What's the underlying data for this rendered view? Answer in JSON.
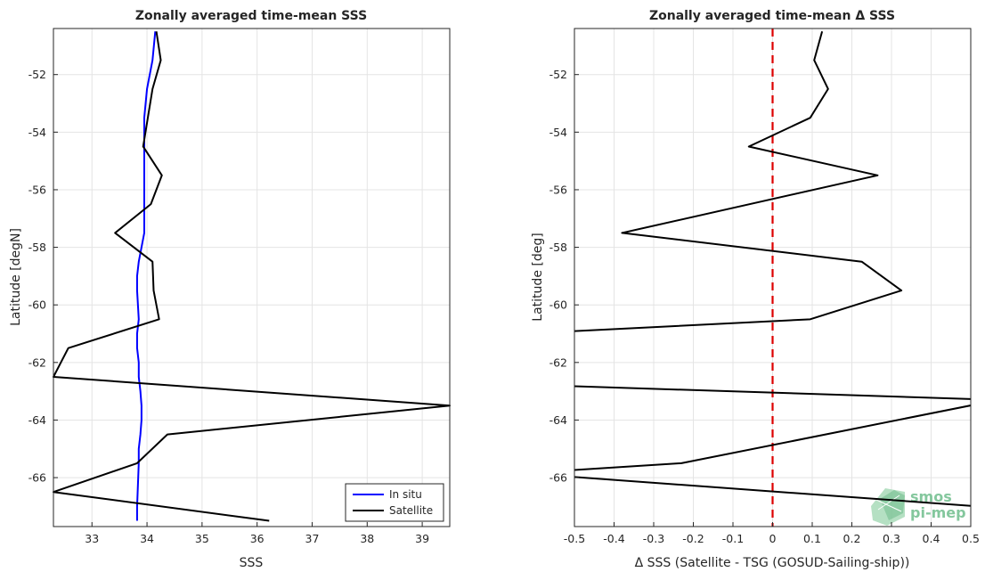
{
  "chart_data": [
    {
      "type": "line",
      "title": "Zonally averaged time-mean SSS",
      "xlabel": "SSS",
      "ylabel": "Latitude [degN]",
      "xlim": [
        32.3,
        39.5
      ],
      "ylim": [
        -67.7,
        -50.4
      ],
      "xticks": [
        33,
        34,
        35,
        36,
        37,
        38,
        39
      ],
      "yticks": [
        -66,
        -64,
        -62,
        -60,
        -58,
        -56,
        -54,
        -52
      ],
      "grid": true,
      "legend": {
        "placement": "bottom-right",
        "entries": [
          "In situ",
          "Satellite"
        ]
      },
      "series": [
        {
          "name": "In situ",
          "color": "#0000ff",
          "x": [
            34.15,
            34.1,
            34.0,
            33.95,
            33.95,
            33.95,
            33.95,
            33.95,
            33.95,
            33.85,
            33.82,
            33.82,
            33.85,
            33.82,
            33.82,
            33.85,
            33.85,
            33.88,
            33.9,
            33.9,
            33.88,
            33.85,
            33.85,
            33.83,
            33.82,
            33.82
          ],
          "y": [
            -50.5,
            -51.5,
            -52.5,
            -53.5,
            -54.5,
            -55.5,
            -56.0,
            -56.5,
            -57.5,
            -58.5,
            -59.0,
            -59.5,
            -60.5,
            -61.0,
            -61.5,
            -62.0,
            -62.5,
            -63.0,
            -63.5,
            -64.0,
            -64.5,
            -65.0,
            -65.5,
            -66.5,
            -67.0,
            -67.5
          ]
        },
        {
          "name": "Satellite",
          "color": "#000000",
          "x": [
            34.17,
            34.25,
            34.1,
            33.93,
            34.27,
            34.07,
            33.42,
            34.1,
            34.12,
            34.22,
            32.57,
            32.3,
            39.5,
            34.37,
            33.82,
            32.3,
            36.22
          ],
          "y": [
            -50.5,
            -51.5,
            -52.5,
            -54.5,
            -55.5,
            -56.5,
            -57.5,
            -58.5,
            -59.5,
            -60.5,
            -61.5,
            -62.5,
            -63.5,
            -64.5,
            -65.5,
            -66.5,
            -67.5
          ]
        }
      ]
    },
    {
      "type": "line",
      "title": "Zonally averaged time-mean Δ SSS",
      "xlabel": "Δ SSS (Satellite - TSG (GOSUD-Sailing-ship))",
      "ylabel": "Latitude [deg]",
      "xlim": [
        -0.5,
        0.5
      ],
      "ylim": [
        -67.7,
        -50.4
      ],
      "xticks": [
        -0.5,
        -0.4,
        -0.3,
        -0.2,
        -0.1,
        0,
        0.1,
        0.2,
        0.3,
        0.4,
        0.5
      ],
      "xticklabels": [
        "-0.5",
        "-0.4",
        "-0.3",
        "-0.2",
        "-0.1",
        "0",
        "0.1",
        "0.2",
        "0.3",
        "0.4",
        "0.5"
      ],
      "yticks": [
        -66,
        -64,
        -62,
        -60,
        -58,
        -56,
        -54,
        -52
      ],
      "grid": true,
      "reference_line": {
        "x": 0,
        "color": "#dd0000",
        "style": "dashed"
      },
      "series": [
        {
          "color": "#000000",
          "x": [
            0.125,
            0.105,
            0.14,
            0.095,
            -0.06,
            0.265,
            -0.38,
            0.225,
            0.325,
            0.095,
            -0.63,
            -0.56,
            0.57,
            -0.23,
            -0.63,
            0.52
          ],
          "y": [
            -50.5,
            -51.5,
            -52.5,
            -53.5,
            -54.5,
            -55.5,
            -57.5,
            -58.5,
            -59.5,
            -60.5,
            -61.0,
            -62.8,
            -63.3,
            -65.5,
            -65.85,
            -67.0
          ]
        }
      ]
    }
  ],
  "logo": {
    "line1": "smos",
    "line2": "pi-mep",
    "color": "#6fbe8c",
    "icon": "smos-satellite-logo-icon"
  }
}
